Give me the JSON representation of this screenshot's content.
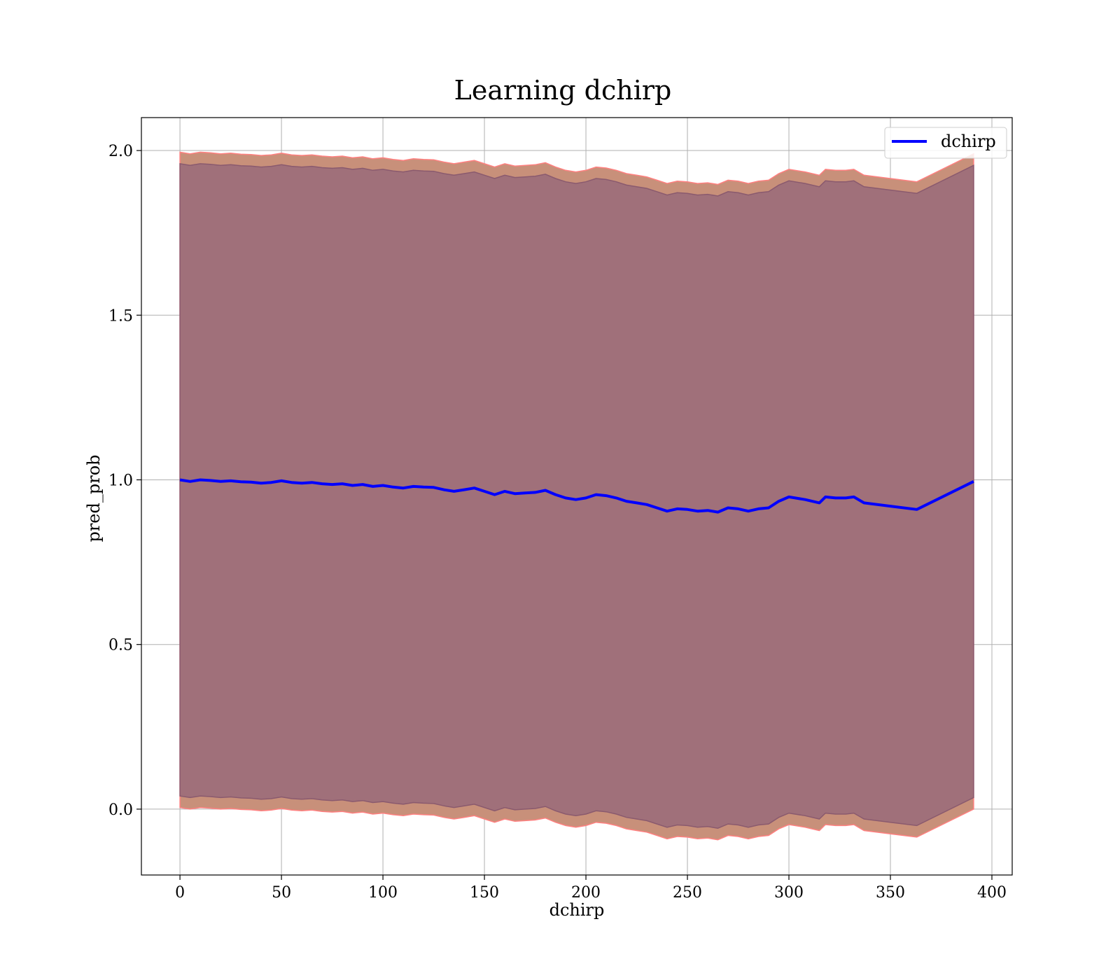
{
  "chart_data": {
    "type": "line",
    "title": "Learning dchirp",
    "xlabel": "dchirp",
    "ylabel": "pred_prob",
    "xlim": [
      -19,
      410
    ],
    "ylim": [
      -0.2,
      2.1
    ],
    "xticks": [
      0,
      50,
      100,
      150,
      200,
      250,
      300,
      350,
      400
    ],
    "yticks": [
      0.0,
      0.5,
      1.0,
      1.5,
      2.0
    ],
    "xtick_labels": [
      "0",
      "50",
      "100",
      "150",
      "200",
      "250",
      "300",
      "350",
      "400"
    ],
    "ytick_labels": [
      "0.0",
      "0.5",
      "1.0",
      "1.5",
      "2.0"
    ],
    "grid": true,
    "legend_position": "top-right",
    "series": [
      {
        "name": "dchirp",
        "color": "#0000ff",
        "x": [
          0,
          5,
          10,
          15,
          20,
          25,
          30,
          35,
          40,
          45,
          50,
          55,
          60,
          65,
          70,
          75,
          80,
          85,
          90,
          95,
          100,
          105,
          110,
          115,
          120,
          125,
          130,
          135,
          140,
          145,
          150,
          155,
          160,
          165,
          170,
          175,
          180,
          185,
          190,
          195,
          200,
          205,
          210,
          215,
          220,
          225,
          230,
          235,
          240,
          245,
          250,
          255,
          260,
          265,
          270,
          275,
          280,
          285,
          290,
          295,
          300,
          308,
          315,
          318,
          323,
          328,
          332,
          337,
          350,
          363,
          391
        ],
        "y": [
          1.0,
          0.995,
          1.0,
          0.998,
          0.995,
          0.997,
          0.994,
          0.993,
          0.99,
          0.992,
          0.997,
          0.992,
          0.99,
          0.992,
          0.988,
          0.986,
          0.988,
          0.983,
          0.986,
          0.98,
          0.983,
          0.978,
          0.975,
          0.98,
          0.978,
          0.977,
          0.97,
          0.965,
          0.97,
          0.975,
          0.965,
          0.955,
          0.965,
          0.958,
          0.96,
          0.962,
          0.968,
          0.955,
          0.945,
          0.94,
          0.945,
          0.955,
          0.952,
          0.945,
          0.935,
          0.93,
          0.925,
          0.915,
          0.905,
          0.912,
          0.91,
          0.905,
          0.907,
          0.902,
          0.915,
          0.912,
          0.905,
          0.912,
          0.915,
          0.935,
          0.948,
          0.94,
          0.93,
          0.948,
          0.945,
          0.945,
          0.948,
          0.93,
          0.92,
          0.91,
          0.995
        ]
      }
    ],
    "bands": [
      {
        "color": "#c8907a",
        "edge_color": "#ff8080",
        "upper": [
          1.995,
          1.99,
          1.995,
          1.993,
          1.99,
          1.992,
          1.989,
          1.988,
          1.985,
          1.987,
          1.992,
          1.987,
          1.985,
          1.987,
          1.983,
          1.981,
          1.983,
          1.978,
          1.981,
          1.975,
          1.978,
          1.973,
          1.97,
          1.975,
          1.973,
          1.972,
          1.965,
          1.96,
          1.965,
          1.97,
          1.96,
          1.95,
          1.96,
          1.953,
          1.955,
          1.957,
          1.963,
          1.95,
          1.94,
          1.935,
          1.94,
          1.95,
          1.947,
          1.94,
          1.93,
          1.925,
          1.92,
          1.91,
          1.9,
          1.907,
          1.905,
          1.9,
          1.902,
          1.897,
          1.91,
          1.907,
          1.9,
          1.907,
          1.91,
          1.93,
          1.943,
          1.935,
          1.925,
          1.943,
          1.94,
          1.94,
          1.943,
          1.925,
          1.915,
          1.905,
          1.99
        ],
        "lower": [
          0.005,
          0.0,
          0.005,
          0.003,
          0.0,
          0.002,
          -0.001,
          -0.002,
          -0.005,
          -0.003,
          0.002,
          -0.003,
          -0.005,
          -0.003,
          -0.007,
          -0.009,
          -0.007,
          -0.012,
          -0.009,
          -0.015,
          -0.012,
          -0.017,
          -0.02,
          -0.015,
          -0.017,
          -0.018,
          -0.025,
          -0.03,
          -0.025,
          -0.02,
          -0.03,
          -0.04,
          -0.03,
          -0.037,
          -0.035,
          -0.033,
          -0.027,
          -0.04,
          -0.05,
          -0.055,
          -0.05,
          -0.04,
          -0.043,
          -0.05,
          -0.06,
          -0.065,
          -0.07,
          -0.08,
          -0.09,
          -0.083,
          -0.085,
          -0.09,
          -0.088,
          -0.093,
          -0.08,
          -0.083,
          -0.09,
          -0.083,
          -0.08,
          -0.06,
          -0.047,
          -0.055,
          -0.065,
          -0.047,
          -0.05,
          -0.05,
          -0.047,
          -0.065,
          -0.075,
          -0.085,
          0.0
        ]
      },
      {
        "color": "#a0707a",
        "edge_color": "#8a5a6e",
        "upper": [
          1.96,
          1.955,
          1.96,
          1.958,
          1.955,
          1.957,
          1.954,
          1.953,
          1.95,
          1.952,
          1.957,
          1.952,
          1.95,
          1.952,
          1.948,
          1.946,
          1.948,
          1.943,
          1.946,
          1.94,
          1.943,
          1.938,
          1.935,
          1.94,
          1.938,
          1.937,
          1.93,
          1.925,
          1.93,
          1.935,
          1.925,
          1.915,
          1.925,
          1.918,
          1.92,
          1.922,
          1.928,
          1.915,
          1.905,
          1.9,
          1.905,
          1.915,
          1.912,
          1.905,
          1.895,
          1.89,
          1.885,
          1.875,
          1.865,
          1.872,
          1.87,
          1.865,
          1.867,
          1.862,
          1.875,
          1.872,
          1.865,
          1.872,
          1.875,
          1.895,
          1.908,
          1.9,
          1.89,
          1.908,
          1.905,
          1.905,
          1.908,
          1.89,
          1.88,
          1.87,
          1.955
        ],
        "lower": [
          0.04,
          0.035,
          0.04,
          0.038,
          0.035,
          0.037,
          0.034,
          0.033,
          0.03,
          0.032,
          0.037,
          0.032,
          0.03,
          0.032,
          0.028,
          0.026,
          0.028,
          0.023,
          0.026,
          0.02,
          0.023,
          0.018,
          0.015,
          0.02,
          0.018,
          0.017,
          0.01,
          0.005,
          0.01,
          0.015,
          0.005,
          -0.005,
          0.005,
          -0.002,
          0.0,
          0.002,
          0.008,
          -0.005,
          -0.015,
          -0.02,
          -0.015,
          -0.005,
          -0.008,
          -0.015,
          -0.025,
          -0.03,
          -0.035,
          -0.045,
          -0.055,
          -0.048,
          -0.05,
          -0.055,
          -0.053,
          -0.058,
          -0.045,
          -0.048,
          -0.055,
          -0.048,
          -0.045,
          -0.025,
          -0.012,
          -0.02,
          -0.03,
          -0.012,
          -0.015,
          -0.015,
          -0.012,
          -0.03,
          -0.04,
          -0.05,
          0.035
        ]
      }
    ]
  }
}
